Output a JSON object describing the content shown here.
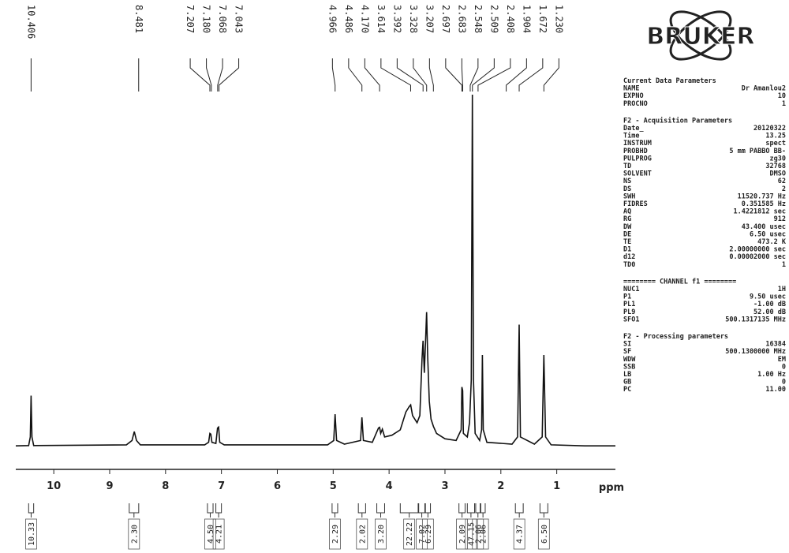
{
  "chart_data": {
    "type": "nmr",
    "logo": "BRUKER",
    "xlabel": "ppm",
    "xlim": [
      10.68,
      -0.05
    ],
    "xticks": [
      10,
      9,
      8,
      7,
      6,
      5,
      4,
      3,
      2,
      1
    ],
    "ylim": [
      0,
      100
    ],
    "color": "#111111",
    "peaks": [
      10.406,
      8.481,
      7.207,
      {
        "value": 7.18,
        "label": "7.180"
      },
      7.068,
      7.043,
      4.966,
      4.486,
      {
        "value": 4.17,
        "label": "4.170"
      },
      3.614,
      3.392,
      3.328,
      3.207,
      2.697,
      2.683,
      2.548,
      2.509,
      2.408,
      1.904,
      1.672,
      {
        "value": 1.23,
        "label": "1.230"
      }
    ],
    "spectrum": {
      "x": [
        10.68,
        10.45,
        10.42,
        10.406,
        10.39,
        10.36,
        8.7,
        8.6,
        8.56,
        8.52,
        8.45,
        7.3,
        7.23,
        7.207,
        7.19,
        7.17,
        7.1,
        7.07,
        7.05,
        7.03,
        6.95,
        5.1,
        4.99,
        4.966,
        4.94,
        4.8,
        4.51,
        4.486,
        4.46,
        4.3,
        4.19,
        4.17,
        4.15,
        4.12,
        4.08,
        3.95,
        3.8,
        3.7,
        3.64,
        3.614,
        3.58,
        3.5,
        3.45,
        3.41,
        3.392,
        3.37,
        3.35,
        3.328,
        3.31,
        3.28,
        3.25,
        3.207,
        3.15,
        3.0,
        2.8,
        2.71,
        2.697,
        2.683,
        2.67,
        2.6,
        2.56,
        2.53,
        2.509,
        2.49,
        2.46,
        2.38,
        2.345,
        2.33,
        2.315,
        2.25,
        1.8,
        1.7,
        1.672,
        1.65,
        1.4,
        1.26,
        1.23,
        1.2,
        1.1,
        0.5,
        -0.05
      ],
      "values": [
        1.5,
        1.6,
        4,
        15.6,
        4,
        1.6,
        1.8,
        3,
        5.5,
        3,
        1.8,
        1.8,
        2.5,
        5,
        4.8,
        2.5,
        2.2,
        6.5,
        6.8,
        2.5,
        1.8,
        1.8,
        3,
        10.4,
        3,
        2,
        3,
        9.5,
        3,
        2.5,
        6.5,
        6.7,
        5,
        6.2,
        4,
        4.5,
        6,
        11,
        12.5,
        13,
        10,
        8,
        10,
        26,
        31,
        22,
        30,
        39,
        27,
        14,
        9,
        7,
        5,
        3.5,
        3,
        6,
        18,
        17,
        5,
        4,
        8,
        20,
        100,
        20,
        5,
        3,
        6,
        27,
        6,
        2.5,
        2,
        4,
        35.5,
        4,
        2,
        4,
        27,
        4,
        1.8,
        1.5,
        1.5
      ]
    },
    "integrals": {
      "ranges": [
        [
          10.45,
          10.36
        ],
        [
          8.65,
          8.48
        ],
        [
          7.25,
          7.15
        ],
        [
          7.1,
          7.0
        ],
        [
          5.02,
          4.92
        ],
        [
          4.55,
          4.42
        ],
        [
          4.22,
          4.08
        ],
        [
          3.8,
          3.48
        ],
        [
          3.47,
          3.36
        ],
        [
          3.35,
          3.26
        ],
        [
          2.75,
          2.64
        ],
        [
          2.6,
          2.47
        ],
        [
          2.45,
          2.37
        ],
        [
          2.36,
          2.28
        ],
        [
          1.74,
          1.6
        ],
        [
          1.3,
          1.16
        ]
      ],
      "values": [
        10.33,
        2.3,
        4.5,
        4.21,
        2.29,
        2.02,
        3.2,
        22.22,
        7.02,
        6.29,
        2.09,
        47.15,
        2.06,
        2.06,
        4.37,
        6.5
      ],
      "value_labels": [
        "10.33",
        "2.30",
        "4.50",
        "4.21",
        "2.29",
        "2.02",
        "3.20",
        "22.22",
        "7.02",
        "6.29",
        "2.09",
        "47.15",
        "2.06",
        "2.06",
        "4.37",
        "6.50"
      ]
    },
    "parameters": [
      {
        "title": "Current Data Parameters",
        "rows": [
          [
            "NAME",
            "Dr Amanlou2"
          ],
          [
            "EXPNO",
            "10"
          ],
          [
            "PROCNO",
            "1"
          ]
        ]
      },
      {
        "title": "F2 - Acquisition Parameters",
        "rows": [
          [
            "Date_",
            "20120322"
          ],
          [
            "Time",
            "13.25"
          ],
          [
            "INSTRUM",
            "spect"
          ],
          [
            "PROBHD",
            "5 mm PABBO BB-"
          ],
          [
            "PULPROG",
            "zg30"
          ],
          [
            "TD",
            "32768"
          ],
          [
            "SOLVENT",
            "DMSO"
          ],
          [
            "NS",
            "62"
          ],
          [
            "DS",
            "2"
          ],
          [
            "SWH",
            "11520.737 Hz"
          ],
          [
            "FIDRES",
            "0.351585 Hz"
          ],
          [
            "AQ",
            "1.4221812 sec"
          ],
          [
            "RG",
            "912"
          ],
          [
            "DW",
            "43.400 usec"
          ],
          [
            "DE",
            "6.50 usec"
          ],
          [
            "TE",
            "473.2 K"
          ],
          [
            "D1",
            "2.00000000 sec"
          ],
          [
            "d12",
            "0.00002000 sec"
          ],
          [
            "TD0",
            "1"
          ]
        ]
      },
      {
        "title": "======== CHANNEL f1 ========",
        "rows": [
          [
            "NUC1",
            "1H"
          ],
          [
            "P1",
            "9.50 usec"
          ],
          [
            "PL1",
            "-1.00 dB"
          ],
          [
            "PL9",
            "52.00 dB"
          ],
          [
            "SFO1",
            "500.1317135 MHz"
          ]
        ]
      },
      {
        "title": "F2 - Processing parameters",
        "rows": [
          [
            "SI",
            "16384"
          ],
          [
            "SF",
            "500.1300000 MHz"
          ],
          [
            "WDW",
            "EM"
          ],
          [
            "SSB",
            "0"
          ],
          [
            "LB",
            "1.00 Hz"
          ],
          [
            "GB",
            "0"
          ],
          [
            "PC",
            "11.00"
          ]
        ]
      }
    ]
  }
}
